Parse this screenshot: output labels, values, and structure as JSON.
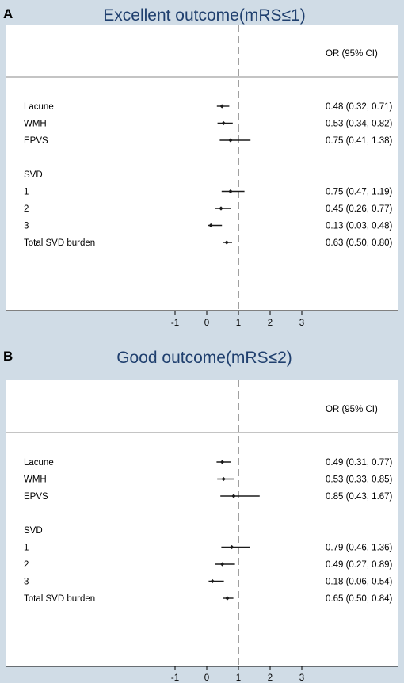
{
  "chart_data": [
    {
      "panel_label": "A",
      "type": "forest",
      "title": "Excellent outcome(mRS≤1)",
      "column_header": "OR (95% CI)",
      "xticks": [
        -1,
        0,
        1,
        2,
        3
      ],
      "xlim": [
        -1.95,
        3.65
      ],
      "reference_line": 1,
      "rows": [
        {
          "kind": "item",
          "label": "Lacune",
          "or": 0.48,
          "lo": 0.32,
          "hi": 0.71,
          "ci_text": "0.48 (0.32, 0.71)"
        },
        {
          "kind": "item",
          "label": "WMH",
          "or": 0.53,
          "lo": 0.34,
          "hi": 0.82,
          "ci_text": "0.53 (0.34, 0.82)"
        },
        {
          "kind": "item",
          "label": "EPVS",
          "or": 0.75,
          "lo": 0.41,
          "hi": 1.38,
          "ci_text": "0.75 (0.41, 1.38)"
        },
        {
          "kind": "blank"
        },
        {
          "kind": "header",
          "label": "SVD"
        },
        {
          "kind": "item",
          "label": "1",
          "or": 0.75,
          "lo": 0.47,
          "hi": 1.19,
          "ci_text": "0.75 (0.47, 1.19)"
        },
        {
          "kind": "item",
          "label": "2",
          "or": 0.45,
          "lo": 0.26,
          "hi": 0.77,
          "ci_text": "0.45 (0.26, 0.77)"
        },
        {
          "kind": "item",
          "label": "3",
          "or": 0.13,
          "lo": 0.03,
          "hi": 0.48,
          "ci_text": "0.13 (0.03, 0.48)"
        },
        {
          "kind": "item",
          "label": "Total SVD burden",
          "or": 0.63,
          "lo": 0.5,
          "hi": 0.8,
          "ci_text": "0.63 (0.50, 0.80)"
        }
      ]
    },
    {
      "panel_label": "B",
      "type": "forest",
      "title": "Good outcome(mRS≤2)",
      "column_header": "OR (95% CI)",
      "xticks": [
        -1,
        0,
        1,
        2,
        3
      ],
      "xlim": [
        -1.95,
        3.65
      ],
      "reference_line": 1,
      "rows": [
        {
          "kind": "item",
          "label": "Lacune",
          "or": 0.49,
          "lo": 0.31,
          "hi": 0.77,
          "ci_text": "0.49 (0.31, 0.77)"
        },
        {
          "kind": "item",
          "label": "WMH",
          "or": 0.53,
          "lo": 0.33,
          "hi": 0.85,
          "ci_text": "0.53 (0.33, 0.85)"
        },
        {
          "kind": "item",
          "label": "EPVS",
          "or": 0.85,
          "lo": 0.43,
          "hi": 1.67,
          "ci_text": "0.85 (0.43, 1.67)"
        },
        {
          "kind": "blank"
        },
        {
          "kind": "header",
          "label": "SVD"
        },
        {
          "kind": "item",
          "label": "1",
          "or": 0.79,
          "lo": 0.46,
          "hi": 1.36,
          "ci_text": "0.79 (0.46, 1.36)"
        },
        {
          "kind": "item",
          "label": "2",
          "or": 0.49,
          "lo": 0.27,
          "hi": 0.89,
          "ci_text": "0.49 (0.27, 0.89)"
        },
        {
          "kind": "item",
          "label": "3",
          "or": 0.18,
          "lo": 0.06,
          "hi": 0.54,
          "ci_text": "0.18 (0.06, 0.54)"
        },
        {
          "kind": "item",
          "label": "Total SVD burden",
          "or": 0.65,
          "lo": 0.5,
          "hi": 0.84,
          "ci_text": "0.65 (0.50, 0.84)"
        }
      ]
    }
  ]
}
